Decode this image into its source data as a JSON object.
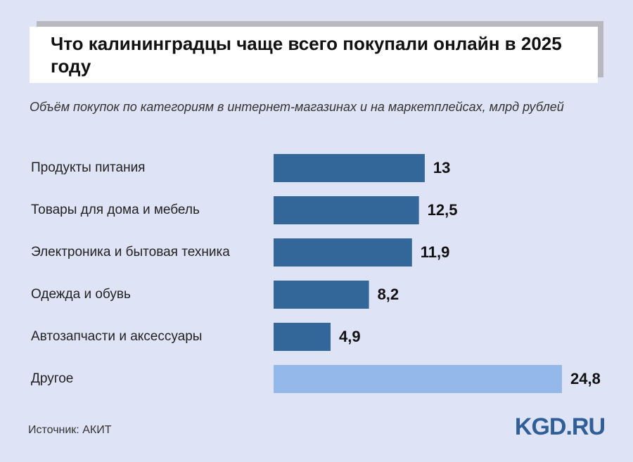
{
  "chart_data": {
    "type": "bar",
    "orientation": "horizontal",
    "title": "Что калининградцы чаще всего покупали онлайн в 2025 году",
    "subtitle": "Объём покупок по категориям в интернет-магазинах и на маркетплейсах, млрд рублей",
    "categories": [
      "Продукты питания",
      "Товары для дома и мебель",
      "Электроника и бытовая техника",
      "Одежда и обувь",
      "Автозапчасти и аксессуары",
      "Другое"
    ],
    "values": [
      13,
      12.5,
      11.9,
      8.2,
      4.9,
      24.8
    ],
    "value_labels": [
      "13",
      "12,5",
      "11,9",
      "8,2",
      "4,9",
      "24,8"
    ],
    "colors": [
      "#336699",
      "#336699",
      "#336699",
      "#336699",
      "#336699",
      "#94b8ea"
    ],
    "source": "Источник: АКИТ",
    "logo": "KGD.RU"
  }
}
